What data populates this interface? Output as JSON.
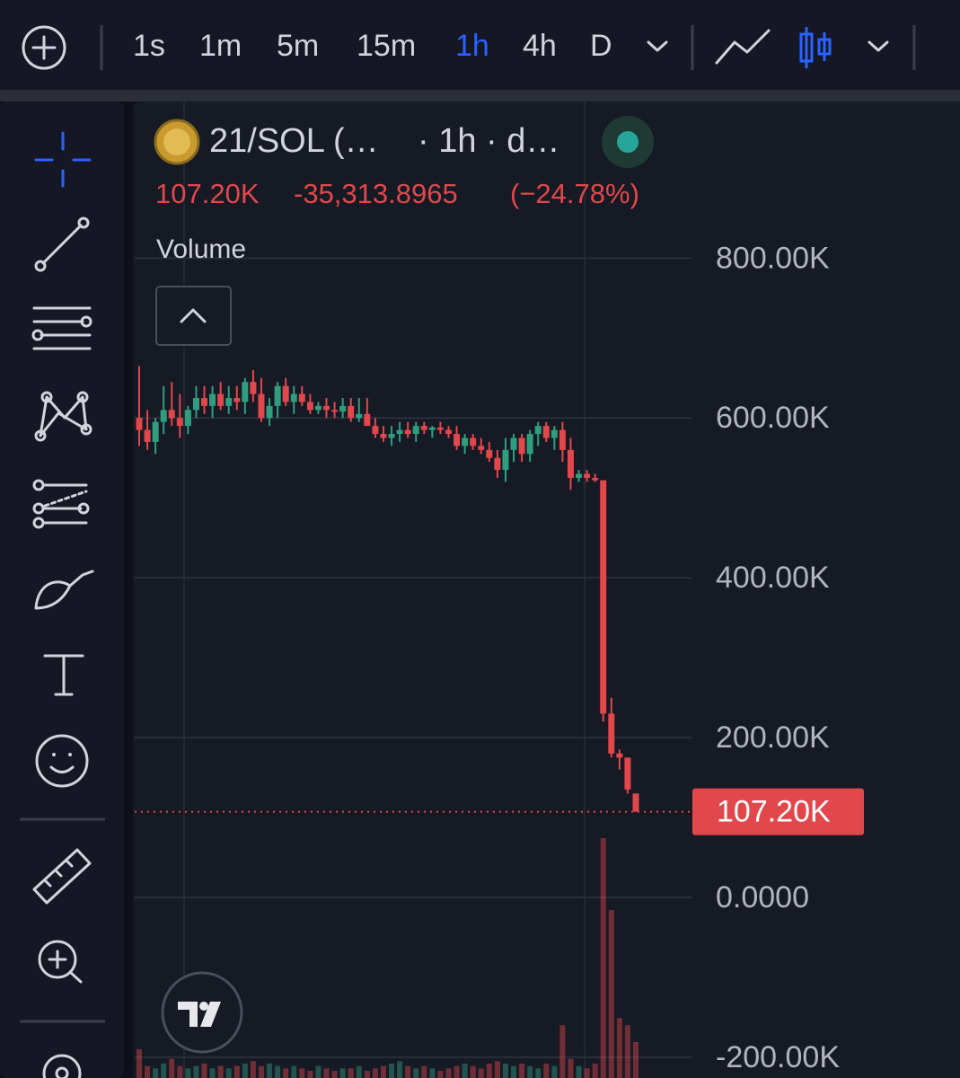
{
  "toolbar": {
    "intervals": [
      "1s",
      "1m",
      "5m",
      "15m",
      "1h",
      "4h",
      "D"
    ],
    "active_interval_index": 4
  },
  "header": {
    "symbol": "21/SOL (…",
    "interval": "· 1h · d…",
    "price": "107.20K",
    "change": "-35,313.8965",
    "change_pct": "(−24.78%)",
    "volume_label": "Volume"
  },
  "chart_data": {
    "type": "candlestick",
    "open": [
      600000,
      585000,
      570000,
      595000,
      610000,
      600000,
      590000,
      610000,
      625000,
      615000,
      630000,
      615000,
      625000,
      620000,
      645000,
      630000,
      600000,
      615000,
      640000,
      620000,
      630000,
      620000,
      610000,
      615000,
      610000,
      608000,
      615000,
      600000,
      605000,
      590000,
      580000,
      575000,
      580000,
      585000,
      580000,
      590000,
      585000,
      588000,
      585000,
      580000,
      565000,
      575000,
      565000,
      560000,
      550000,
      535000,
      560000,
      575000,
      555000,
      580000,
      590000,
      575000,
      585000,
      560000,
      525000,
      530000,
      525000,
      522000,
      230000,
      180000,
      175000,
      130000
    ],
    "high": [
      665000,
      610000,
      600000,
      640000,
      645000,
      630000,
      615000,
      640000,
      640000,
      640000,
      645000,
      640000,
      640000,
      650000,
      660000,
      650000,
      625000,
      645000,
      650000,
      640000,
      640000,
      630000,
      620000,
      625000,
      620000,
      625000,
      625000,
      625000,
      625000,
      600000,
      590000,
      590000,
      595000,
      595000,
      595000,
      595000,
      590000,
      595000,
      590000,
      590000,
      580000,
      580000,
      575000,
      570000,
      560000,
      575000,
      580000,
      580000,
      585000,
      595000,
      595000,
      590000,
      595000,
      575000,
      535000,
      535000,
      530000,
      522000,
      250000,
      185000,
      175000,
      130000
    ],
    "low": [
      565000,
      560000,
      555000,
      580000,
      590000,
      575000,
      580000,
      600000,
      605000,
      600000,
      610000,
      605000,
      610000,
      605000,
      620000,
      595000,
      590000,
      600000,
      615000,
      605000,
      615000,
      605000,
      605000,
      600000,
      600000,
      600000,
      595000,
      595000,
      595000,
      575000,
      570000,
      565000,
      570000,
      575000,
      570000,
      580000,
      575000,
      580000,
      575000,
      560000,
      555000,
      560000,
      555000,
      545000,
      525000,
      520000,
      545000,
      545000,
      545000,
      565000,
      570000,
      560000,
      545000,
      510000,
      520000,
      520000,
      520000,
      220000,
      175000,
      160000,
      130000,
      107000
    ],
    "close": [
      585000,
      570000,
      595000,
      610000,
      600000,
      590000,
      610000,
      625000,
      615000,
      630000,
      615000,
      625000,
      620000,
      645000,
      630000,
      600000,
      615000,
      640000,
      620000,
      630000,
      620000,
      610000,
      615000,
      610000,
      608000,
      615000,
      600000,
      605000,
      590000,
      580000,
      575000,
      580000,
      585000,
      580000,
      590000,
      585000,
      588000,
      585000,
      580000,
      565000,
      575000,
      565000,
      560000,
      550000,
      535000,
      560000,
      575000,
      555000,
      580000,
      590000,
      575000,
      585000,
      560000,
      525000,
      530000,
      525000,
      522000,
      230000,
      180000,
      175000,
      135000,
      107200
    ],
    "volume": [
      12,
      5,
      4,
      6,
      8,
      5,
      4,
      5,
      6,
      4,
      5,
      4,
      5,
      6,
      7,
      5,
      6,
      5,
      4,
      5,
      4,
      3,
      5,
      4,
      3,
      4,
      4,
      5,
      3,
      4,
      5,
      6,
      7,
      5,
      4,
      5,
      4,
      3,
      4,
      5,
      6,
      5,
      4,
      6,
      7,
      6,
      5,
      6,
      5,
      4,
      6,
      5,
      22,
      8,
      5,
      4,
      6,
      100,
      70,
      25,
      22,
      15
    ],
    "ylim": [
      -226000,
      996000
    ],
    "yticks": [
      {
        "value": -200000,
        "label": "-200.00K"
      },
      {
        "value": 0,
        "label": "0.0000"
      },
      {
        "value": 200000,
        "label": "200.00K"
      },
      {
        "value": 400000,
        "label": "400.00K"
      },
      {
        "value": 600000,
        "label": "600.00K"
      },
      {
        "value": 800000,
        "label": "800.00K"
      }
    ],
    "last_price": {
      "value": 107200,
      "label": "107.20K"
    },
    "grid": true,
    "up_color": "#2f9e7f",
    "down_color": "#e2474b"
  }
}
